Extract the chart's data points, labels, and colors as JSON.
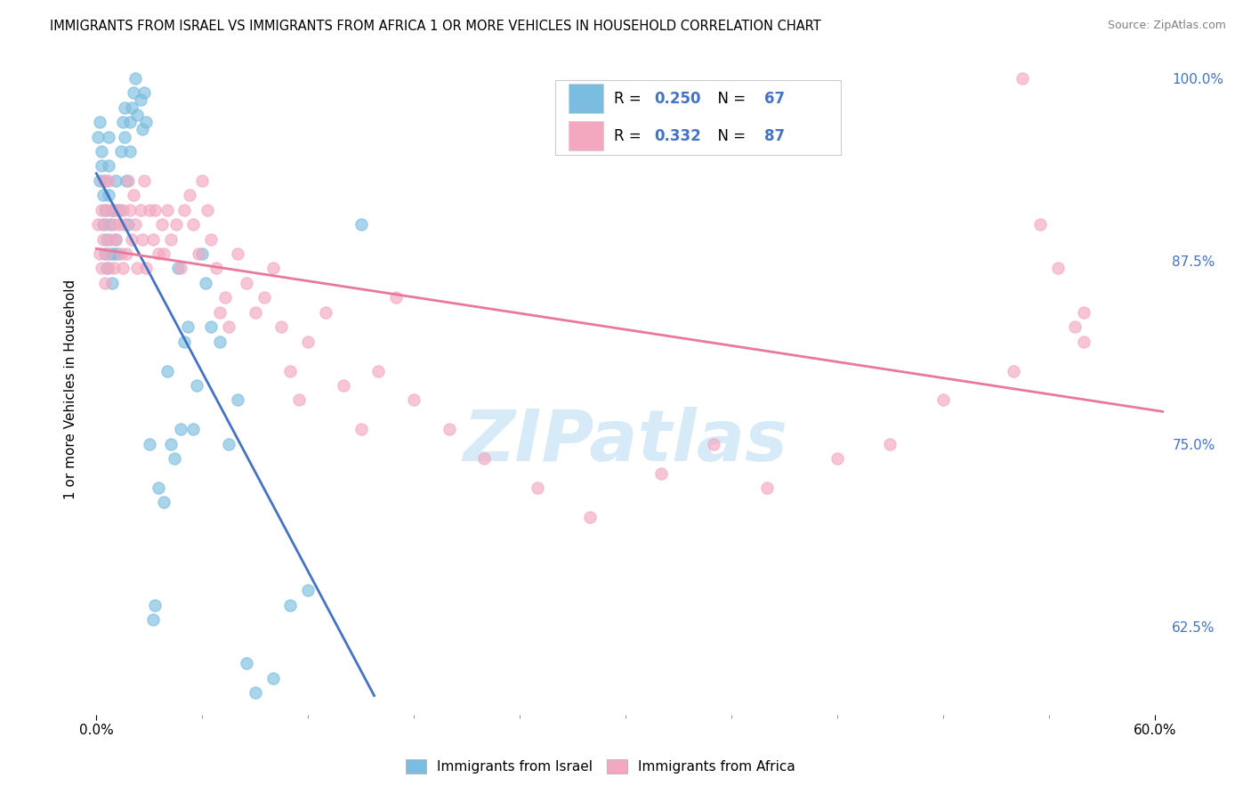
{
  "title": "IMMIGRANTS FROM ISRAEL VS IMMIGRANTS FROM AFRICA 1 OR MORE VEHICLES IN HOUSEHOLD CORRELATION CHART",
  "source": "Source: ZipAtlas.com",
  "ylabel": "1 or more Vehicles in Household",
  "xlim": [
    -0.005,
    0.605
  ],
  "ylim": [
    0.565,
    1.01
  ],
  "xtick_positions": [
    0.0,
    0.6
  ],
  "xticklabels": [
    "0.0%",
    "60.0%"
  ],
  "yticks_right": [
    0.625,
    0.75,
    0.875,
    1.0
  ],
  "ytick_right_labels": [
    "62.5%",
    "75.0%",
    "87.5%",
    "100.0%"
  ],
  "israel_R": 0.25,
  "israel_N": 67,
  "africa_R": 0.332,
  "africa_N": 87,
  "israel_color": "#7bbde0",
  "africa_color": "#f4a8c0",
  "israel_line_color": "#4472c4",
  "africa_line_color": "#e8799a",
  "watermark": "ZIPatlas",
  "watermark_color": "#d6eaf8",
  "background_color": "#ffffff",
  "grid_color": "#e8e8e8",
  "marker_size": 90,
  "israel_x": [
    0.001,
    0.002,
    0.002,
    0.003,
    0.003,
    0.004,
    0.004,
    0.005,
    0.005,
    0.005,
    0.006,
    0.006,
    0.007,
    0.007,
    0.007,
    0.008,
    0.008,
    0.009,
    0.009,
    0.01,
    0.01,
    0.011,
    0.011,
    0.012,
    0.013,
    0.014,
    0.015,
    0.016,
    0.016,
    0.017,
    0.018,
    0.019,
    0.019,
    0.02,
    0.021,
    0.022,
    0.023,
    0.025,
    0.026,
    0.027,
    0.028,
    0.03,
    0.032,
    0.033,
    0.035,
    0.038,
    0.04,
    0.042,
    0.044,
    0.046,
    0.048,
    0.05,
    0.052,
    0.055,
    0.057,
    0.06,
    0.062,
    0.065,
    0.07,
    0.075,
    0.08,
    0.085,
    0.09,
    0.1,
    0.11,
    0.12,
    0.15
  ],
  "israel_y": [
    0.96,
    0.93,
    0.97,
    0.94,
    0.95,
    0.9,
    0.92,
    0.88,
    0.91,
    0.93,
    0.87,
    0.89,
    0.92,
    0.94,
    0.96,
    0.88,
    0.9,
    0.86,
    0.91,
    0.88,
    0.91,
    0.89,
    0.93,
    0.88,
    0.91,
    0.95,
    0.97,
    0.98,
    0.96,
    0.93,
    0.9,
    0.95,
    0.97,
    0.98,
    0.99,
    1.0,
    0.975,
    0.985,
    0.965,
    0.99,
    0.97,
    0.75,
    0.63,
    0.64,
    0.72,
    0.71,
    0.8,
    0.75,
    0.74,
    0.87,
    0.76,
    0.82,
    0.83,
    0.76,
    0.79,
    0.88,
    0.86,
    0.83,
    0.82,
    0.75,
    0.78,
    0.6,
    0.58,
    0.59,
    0.64,
    0.65,
    0.9
  ],
  "africa_x": [
    0.001,
    0.002,
    0.003,
    0.003,
    0.004,
    0.004,
    0.005,
    0.005,
    0.006,
    0.006,
    0.007,
    0.007,
    0.008,
    0.009,
    0.01,
    0.01,
    0.011,
    0.012,
    0.013,
    0.014,
    0.015,
    0.015,
    0.016,
    0.017,
    0.018,
    0.019,
    0.02,
    0.021,
    0.022,
    0.023,
    0.025,
    0.026,
    0.027,
    0.028,
    0.03,
    0.032,
    0.033,
    0.035,
    0.037,
    0.038,
    0.04,
    0.042,
    0.045,
    0.048,
    0.05,
    0.053,
    0.055,
    0.058,
    0.06,
    0.063,
    0.065,
    0.068,
    0.07,
    0.073,
    0.075,
    0.08,
    0.085,
    0.09,
    0.095,
    0.1,
    0.105,
    0.11,
    0.115,
    0.12,
    0.13,
    0.14,
    0.15,
    0.16,
    0.17,
    0.18,
    0.2,
    0.22,
    0.25,
    0.28,
    0.32,
    0.35,
    0.38,
    0.42,
    0.45,
    0.48,
    0.52,
    0.56,
    0.56,
    0.555,
    0.545,
    0.535,
    0.525
  ],
  "africa_y": [
    0.9,
    0.88,
    0.87,
    0.91,
    0.89,
    0.93,
    0.86,
    0.9,
    0.88,
    0.91,
    0.87,
    0.93,
    0.89,
    0.91,
    0.87,
    0.9,
    0.89,
    0.91,
    0.9,
    0.88,
    0.91,
    0.87,
    0.9,
    0.88,
    0.93,
    0.91,
    0.89,
    0.92,
    0.9,
    0.87,
    0.91,
    0.89,
    0.93,
    0.87,
    0.91,
    0.89,
    0.91,
    0.88,
    0.9,
    0.88,
    0.91,
    0.89,
    0.9,
    0.87,
    0.91,
    0.92,
    0.9,
    0.88,
    0.93,
    0.91,
    0.89,
    0.87,
    0.84,
    0.85,
    0.83,
    0.88,
    0.86,
    0.84,
    0.85,
    0.87,
    0.83,
    0.8,
    0.78,
    0.82,
    0.84,
    0.79,
    0.76,
    0.8,
    0.85,
    0.78,
    0.76,
    0.74,
    0.72,
    0.7,
    0.73,
    0.75,
    0.72,
    0.74,
    0.75,
    0.78,
    0.8,
    0.82,
    0.84,
    0.83,
    0.87,
    0.9,
    1.0
  ]
}
